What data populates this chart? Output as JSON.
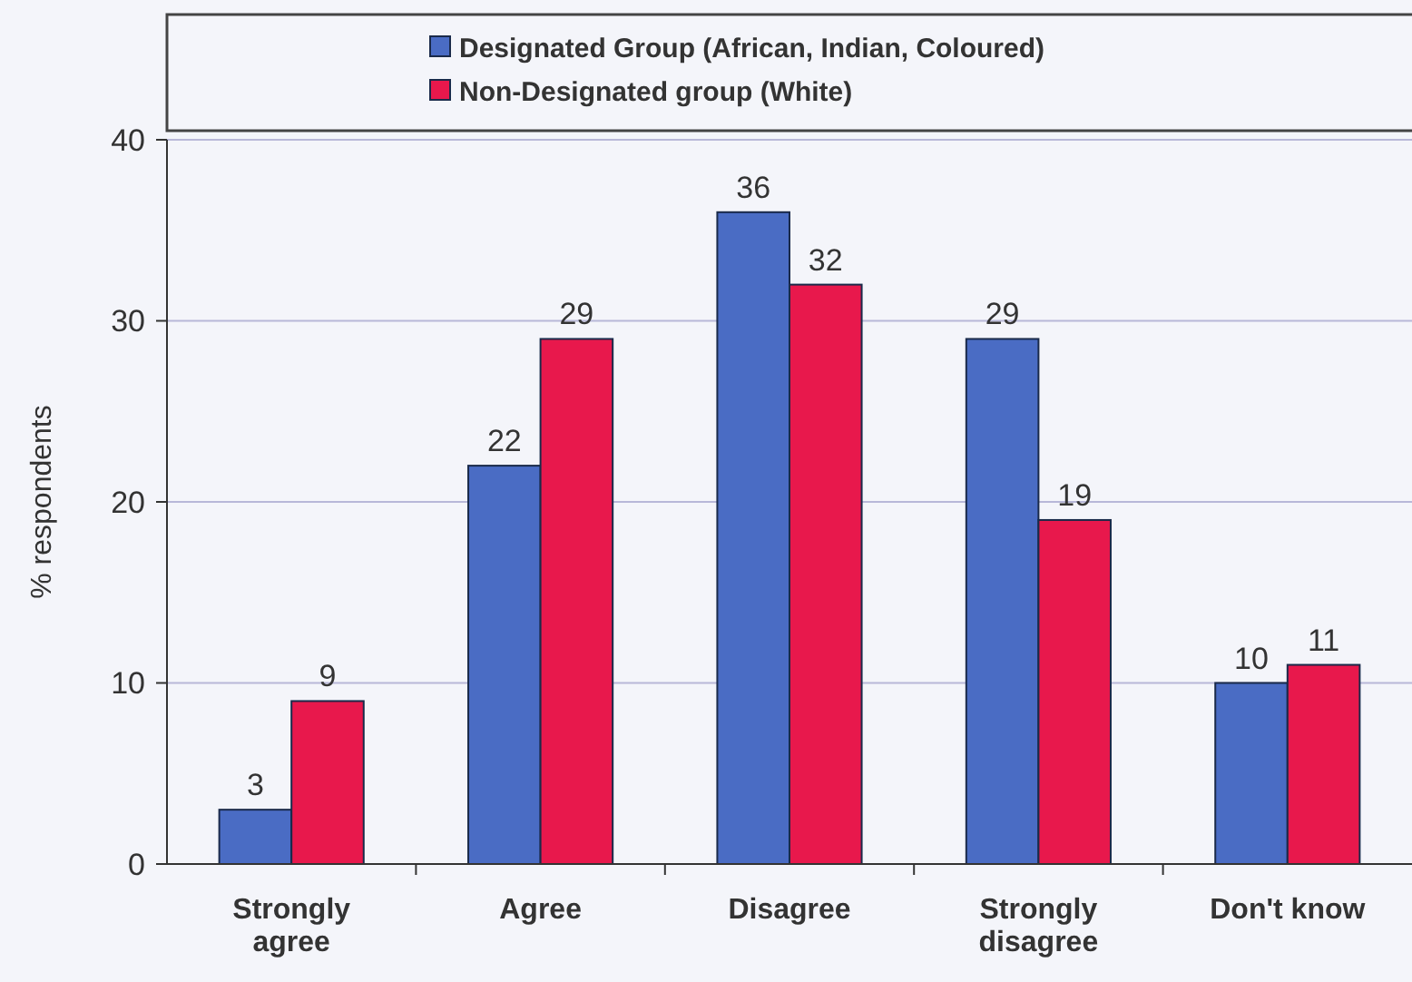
{
  "chart_data": {
    "type": "bar",
    "ylabel": "% respondents",
    "categories": [
      "Strongly agree",
      "Agree",
      "Disagree",
      "Strongly disagree",
      "Don't know"
    ],
    "series": [
      {
        "name": "Designated Group (African, Indian, Coloured)",
        "color": "#4a6cc4",
        "values": [
          3,
          22,
          36,
          29,
          10
        ]
      },
      {
        "name": "Non-Designated group (White)",
        "color": "#e8184c",
        "values": [
          9,
          29,
          32,
          19,
          11
        ]
      }
    ],
    "ylim": [
      0,
      40
    ],
    "yticks": [
      0,
      10,
      20,
      30,
      40
    ],
    "grid": "y",
    "legend": "top",
    "data_labels": true
  }
}
